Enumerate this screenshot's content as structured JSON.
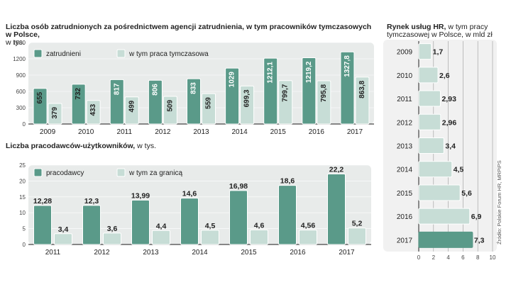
{
  "colors": {
    "primary": "#5a9a89",
    "secondary": "#c7ddd6",
    "panel": "#e8ebea",
    "panel_right": "#f1f1f1",
    "axis": "#444444"
  },
  "chart1": {
    "title_bold": "Liczba osób zatrudnionych za pośrednictwem agencji zatrudnienia, w tym pracowników tymczasowych w Polsce,",
    "title_unit": "w tys."
  },
  "chart2": {
    "title_bold": "Liczba pracodawców-użytkowników,",
    "title_unit": " w tys."
  },
  "chart3": {
    "title_bold": "Rynek usług HR,",
    "title_rest": " w tym pracy",
    "title_line2": "tymczasowej w Polsce, w mld zł"
  },
  "source": "Źródło: Polskie Forum HR, MRPiPS",
  "chart_data": [
    {
      "type": "bar",
      "categories": [
        "2009",
        "2010",
        "2011",
        "2012",
        "2013",
        "2014",
        "2015",
        "2016",
        "2017"
      ],
      "series": [
        {
          "name": "zatrudnieni",
          "values": [
            655,
            732,
            817,
            806,
            833,
            1029,
            1212.1,
            1219.2,
            1327.8
          ],
          "labels": [
            "655",
            "732",
            "817",
            "806",
            "833",
            "1029",
            "1212,1",
            "1219,2",
            "1327,8"
          ]
        },
        {
          "name": "w tym praca tymczasowa",
          "values": [
            379,
            433,
            499,
            509,
            559,
            699.3,
            799.7,
            795.8,
            863.8
          ],
          "labels": [
            "379",
            "433",
            "499",
            "509",
            "559",
            "699,3",
            "799,7",
            "795,8",
            "863,8"
          ]
        }
      ],
      "yticks": [
        "0",
        "300",
        "600",
        "900",
        "1200",
        "1500"
      ],
      "ylim": [
        0,
        1500
      ]
    },
    {
      "type": "bar",
      "categories": [
        "2011",
        "2012",
        "2013",
        "2014",
        "2015",
        "2016",
        "2017"
      ],
      "series": [
        {
          "name": "pracodawcy",
          "values": [
            12.28,
            12.3,
            13.99,
            14.6,
            16.98,
            18.6,
            22.2
          ],
          "labels": [
            "12,28",
            "12,3",
            "13,99",
            "14,6",
            "16,98",
            "18,6",
            "22,2"
          ]
        },
        {
          "name": "w tym za granicą",
          "values": [
            3.4,
            3.6,
            4.4,
            4.5,
            4.6,
            4.56,
            5.2
          ],
          "labels": [
            "3,4",
            "3,6",
            "4,4",
            "4,5",
            "4,6",
            "4,56",
            "5,2"
          ]
        }
      ],
      "yticks": [
        "0",
        "5",
        "10",
        "15",
        "20",
        "25"
      ],
      "ylim": [
        0,
        25
      ]
    },
    {
      "type": "bar",
      "orientation": "horizontal",
      "categories": [
        "2009",
        "2010",
        "2011",
        "2012",
        "2013",
        "2014",
        "2015",
        "2016",
        "2017"
      ],
      "values": [
        1.7,
        2.6,
        2.93,
        2.96,
        3.4,
        4.5,
        5.6,
        6.9,
        7.3
      ],
      "labels": [
        "1,7",
        "2,6",
        "2,93",
        "2,96",
        "3,4",
        "4,5",
        "5,6",
        "6,9",
        "7,3"
      ],
      "xticks": [
        "0",
        "2",
        "4",
        "6",
        "8",
        "10"
      ],
      "xlim": [
        0,
        10
      ]
    }
  ]
}
